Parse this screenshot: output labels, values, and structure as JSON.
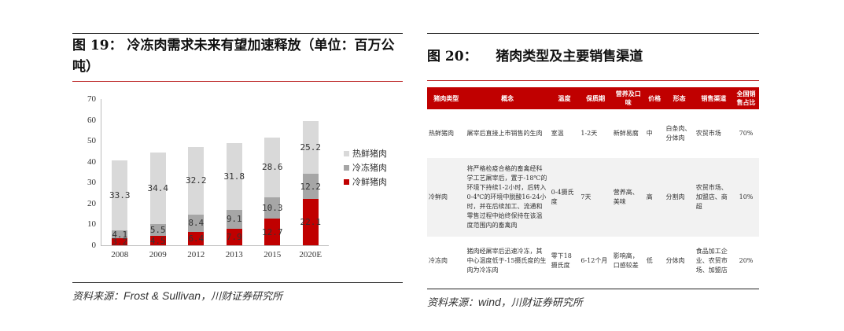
{
  "left": {
    "title": "图 19： 冷冻肉需求未来有望加速释放（单位：百万公吨）",
    "source_prefix": "资料来源：",
    "source_main": "Frost & Sullivan",
    "source_suffix": "，川财证券研究所"
  },
  "right": {
    "title": "图 20：    猪肉类型及主要销售渠道",
    "source_prefix": "资料来源：",
    "source_main": "wind",
    "source_suffix": "，川财证券研究所",
    "table": {
      "headers": [
        "猪肉类型",
        "概念",
        "温度",
        "保质期",
        "营养及口味",
        "价格",
        "形态",
        "销售渠道",
        "全国销售占比"
      ],
      "rows": [
        [
          "热鲜猪肉",
          "屠宰后直接上市销售的生肉",
          "室温",
          "1-2天",
          "新鲜易腐",
          "中",
          "白条肉、分体肉",
          "农贸市场",
          "70%"
        ],
        [
          "冷鲜肉",
          "将严格检疫合格的畜禽经科学工艺屠宰后，置于-18℃的环境下持续1-2小时，后转入0-4℃的环境中脱酸16-24小时，并在后续加工、流通和零售过程中始终保持在该温度范围内的畜禽肉",
          "0-4摄氏度",
          "7天",
          "营养高、美味",
          "高",
          "分割肉",
          "农贸市场、加盟店、商超",
          "10%"
        ],
        [
          "冷冻肉",
          "猪肉经屠宰后迅速冷冻，其中心温度低于-15摄氏度的生肉为冷冻肉",
          "零下18摄氏度",
          "6-12个月",
          "影响高，口感较差",
          "低",
          "分体肉",
          "食品加工企业、农贸市场、加盟店",
          "20%"
        ]
      ]
    }
  },
  "chart_data": {
    "type": "bar",
    "stacked": true,
    "title": "冷冻肉需求未来有望加速释放（单位：百万公吨）",
    "categories": [
      "2008",
      "2009",
      "2012",
      "2013",
      "2015",
      "2020E"
    ],
    "series": [
      {
        "name": "冷鲜猪肉",
        "color": "#c00000",
        "values": [
          3.2,
          4.5,
          6.4,
          7.9,
          12.7,
          22.1
        ]
      },
      {
        "name": "冷冻猪肉",
        "color": "#a6a6a6",
        "values": [
          4.1,
          5.5,
          8.4,
          9.1,
          10.3,
          12.2
        ]
      },
      {
        "name": "热鲜猪肉",
        "color": "#d9d9d9",
        "values": [
          33.3,
          34.4,
          32.2,
          31.8,
          28.6,
          25.2
        ]
      }
    ],
    "legend": [
      "热鲜猪肉",
      "冷冻猪肉",
      "冷鲜猪肉"
    ],
    "legend_position": "right",
    "yticks": [
      "0",
      "10",
      "20",
      "30",
      "40",
      "50",
      "60",
      "70"
    ],
    "ylim": [
      0,
      70
    ],
    "grid": false,
    "xlabel": "",
    "ylabel": ""
  }
}
